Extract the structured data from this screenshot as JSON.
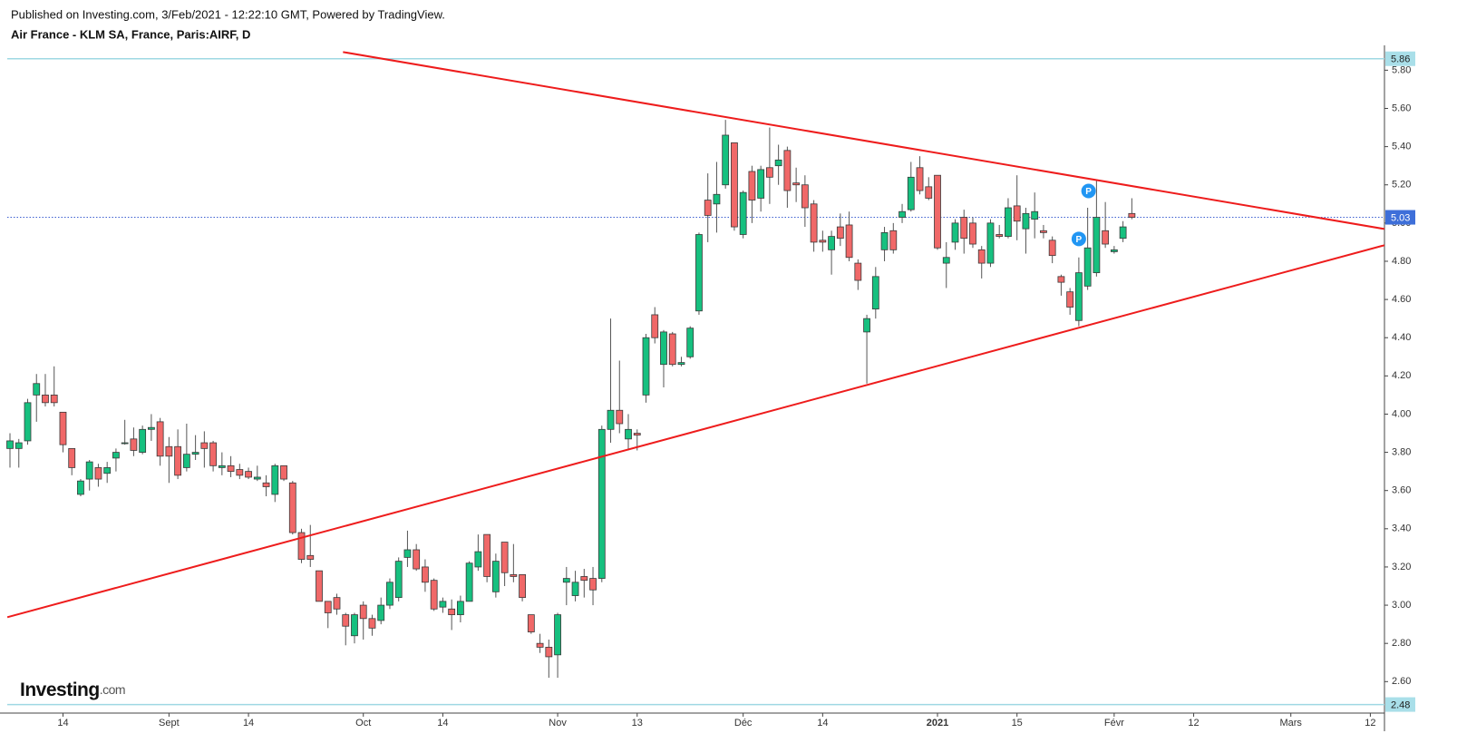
{
  "chart_data": {
    "type": "candlestick",
    "published": "Published on Investing.com, 3/Feb/2021 - 12:22:10 GMT, Powered by TradingView.",
    "title": "Air France - KLM SA, France, Paris:AIRF, D",
    "logo": "Investing",
    "logo_suffix": ".com",
    "up_color": "#16c07f",
    "down_color": "#f06868",
    "border_color": "#3a3a3a",
    "wick_color": "#555555",
    "open": [
      3.82,
      3.82,
      3.86,
      4.1,
      4.1,
      4.1,
      4.01,
      3.82,
      3.58,
      3.66,
      3.72,
      3.69,
      3.77,
      3.85,
      3.87,
      3.8,
      3.92,
      3.96,
      3.83,
      3.83,
      3.72,
      3.79,
      3.85,
      3.85,
      3.72,
      3.73,
      3.71,
      3.7,
      3.66,
      3.64,
      3.58,
      3.73,
      3.64,
      3.38,
      3.26,
      3.18,
      3.02,
      3.04,
      2.95,
      2.84,
      3.0,
      2.93,
      2.92,
      3.0,
      3.04,
      3.25,
      3.29,
      3.2,
      3.13,
      2.99,
      2.98,
      2.95,
      3.02,
      3.2,
      3.37,
      3.07,
      3.33,
      3.16,
      3.16,
      2.95,
      2.8,
      2.78,
      2.74,
      3.12,
      3.05,
      3.15,
      3.14,
      3.14,
      3.92,
      4.02,
      3.87,
      3.9,
      4.1,
      4.52,
      4.26,
      4.42,
      4.26,
      4.3,
      4.54,
      5.12,
      5.1,
      5.2,
      5.42,
      4.94,
      5.27,
      5.13,
      5.29,
      5.3,
      5.38,
      5.21,
      5.2,
      5.1,
      4.91,
      4.86,
      4.98,
      4.99,
      4.79,
      4.43,
      4.55,
      4.86,
      4.96,
      5.03,
      5.07,
      5.29,
      5.19,
      5.25,
      4.79,
      4.9,
      5.03,
      5.0,
      4.86,
      4.79,
      4.94,
      4.93,
      5.09,
      4.97,
      5.02,
      4.96,
      4.91,
      4.72,
      4.64,
      4.49,
      4.67,
      4.74,
      4.96,
      4.85,
      4.92,
      5.05
    ],
    "high": [
      3.9,
      3.87,
      4.08,
      4.21,
      4.21,
      4.25,
      4.01,
      3.82,
      3.66,
      3.76,
      3.74,
      3.75,
      3.82,
      3.97,
      3.93,
      3.94,
      4.0,
      3.98,
      3.88,
      3.92,
      3.95,
      3.89,
      3.91,
      3.86,
      3.8,
      3.78,
      3.74,
      3.72,
      3.73,
      3.68,
      3.74,
      3.73,
      3.65,
      3.4,
      3.42,
      3.18,
      3.02,
      3.06,
      2.96,
      2.96,
      3.02,
      2.95,
      3.04,
      3.14,
      3.25,
      3.39,
      3.32,
      3.24,
      3.14,
      3.04,
      3.03,
      3.05,
      3.23,
      3.37,
      3.37,
      3.27,
      3.33,
      3.32,
      3.16,
      2.95,
      2.85,
      2.82,
      2.96,
      3.2,
      3.18,
      3.19,
      3.2,
      3.94,
      4.5,
      4.28,
      4.0,
      3.92,
      4.42,
      4.56,
      4.44,
      4.43,
      4.3,
      4.46,
      4.95,
      5.26,
      5.32,
      5.54,
      5.42,
      5.17,
      5.3,
      5.3,
      5.5,
      5.41,
      5.4,
      5.29,
      5.25,
      5.12,
      4.96,
      4.96,
      5.05,
      5.06,
      4.81,
      4.52,
      4.77,
      4.98,
      5.0,
      5.1,
      5.32,
      5.35,
      5.24,
      5.25,
      4.9,
      5.02,
      5.07,
      5.03,
      4.88,
      5.02,
      4.99,
      5.13,
      5.25,
      5.08,
      5.16,
      4.99,
      4.93,
      4.73,
      4.66,
      4.82,
      5.08,
      5.22,
      5.11,
      4.88,
      5.01,
      5.13
    ],
    "low": [
      3.72,
      3.72,
      3.84,
      3.96,
      4.04,
      4.04,
      3.8,
      3.68,
      3.57,
      3.6,
      3.62,
      3.64,
      3.7,
      3.84,
      3.78,
      3.79,
      3.86,
      3.73,
      3.64,
      3.66,
      3.7,
      3.76,
      3.72,
      3.7,
      3.68,
      3.67,
      3.66,
      3.66,
      3.65,
      3.57,
      3.54,
      3.65,
      3.37,
      3.22,
      3.2,
      3.02,
      2.88,
      2.95,
      2.79,
      2.8,
      2.82,
      2.84,
      2.9,
      2.98,
      3.02,
      3.2,
      3.18,
      3.07,
      2.97,
      2.96,
      2.87,
      2.91,
      3.02,
      3.18,
      3.12,
      3.04,
      3.1,
      3.12,
      3.02,
      2.85,
      2.75,
      2.62,
      2.62,
      3.0,
      3.02,
      3.04,
      3.0,
      3.12,
      3.85,
      3.9,
      3.81,
      3.81,
      4.06,
      4.37,
      4.14,
      4.25,
      4.25,
      4.29,
      4.52,
      4.9,
      4.95,
      5.18,
      4.96,
      4.92,
      5.0,
      5.06,
      5.1,
      5.2,
      5.08,
      5.11,
      4.98,
      4.85,
      4.85,
      4.73,
      4.88,
      4.8,
      4.65,
      4.16,
      4.5,
      4.8,
      4.84,
      5.0,
      5.06,
      5.15,
      5.12,
      4.86,
      4.66,
      4.86,
      4.84,
      4.87,
      4.71,
      4.77,
      4.92,
      4.92,
      4.91,
      4.84,
      4.92,
      4.92,
      4.79,
      4.62,
      4.52,
      4.46,
      4.65,
      4.72,
      4.87,
      4.84,
      4.9,
      5.02
    ],
    "close": [
      3.86,
      3.85,
      4.06,
      4.16,
      4.06,
      4.06,
      3.84,
      3.72,
      3.65,
      3.75,
      3.66,
      3.72,
      3.8,
      3.85,
      3.81,
      3.92,
      3.93,
      3.78,
      3.78,
      3.68,
      3.79,
      3.8,
      3.82,
      3.73,
      3.73,
      3.7,
      3.68,
      3.67,
      3.67,
      3.62,
      3.73,
      3.66,
      3.38,
      3.24,
      3.24,
      3.02,
      2.96,
      2.98,
      2.89,
      2.95,
      2.93,
      2.88,
      3.0,
      3.12,
      3.23,
      3.29,
      3.19,
      3.12,
      2.98,
      3.02,
      2.95,
      3.02,
      3.22,
      3.28,
      3.15,
      3.23,
      3.17,
      3.15,
      3.04,
      2.86,
      2.78,
      2.73,
      2.95,
      3.14,
      3.12,
      3.13,
      3.08,
      3.92,
      4.02,
      3.95,
      3.92,
      3.89,
      4.4,
      4.4,
      4.43,
      4.26,
      4.27,
      4.45,
      4.94,
      5.04,
      5.15,
      5.46,
      4.98,
      5.16,
      5.12,
      5.28,
      5.24,
      5.33,
      5.17,
      5.2,
      5.08,
      4.9,
      4.9,
      4.93,
      4.92,
      4.82,
      4.7,
      4.5,
      4.72,
      4.95,
      4.86,
      5.06,
      5.24,
      5.17,
      5.13,
      4.87,
      4.82,
      5.0,
      4.92,
      4.89,
      4.79,
      5.0,
      4.93,
      5.08,
      5.01,
      5.05,
      5.06,
      4.95,
      4.83,
      4.69,
      4.56,
      4.74,
      4.87,
      5.03,
      4.89,
      4.86,
      4.98,
      5.03
    ],
    "xlim": [
      -1.13,
      155.6
    ],
    "xticks": [
      {
        "value": 6,
        "label": "14"
      },
      {
        "value": 18,
        "label": "Sept"
      },
      {
        "value": 27,
        "label": "14"
      },
      {
        "value": 40,
        "label": "Oct"
      },
      {
        "value": 49,
        "label": "14"
      },
      {
        "value": 62,
        "label": "Nov"
      },
      {
        "value": 71,
        "label": "13"
      },
      {
        "value": 83,
        "label": "Déc"
      },
      {
        "value": 92,
        "label": "14"
      },
      {
        "value": 105,
        "label": "2021",
        "bold": true
      },
      {
        "value": 114,
        "label": "15"
      },
      {
        "value": 125,
        "label": "Févr"
      },
      {
        "value": 134,
        "label": "12"
      },
      {
        "value": 145,
        "label": "Mars"
      },
      {
        "value": 154,
        "label": "12"
      }
    ],
    "ylim": [
      2.44,
      5.93
    ],
    "yticks": [
      {
        "value": 2.6,
        "label": "2.60"
      },
      {
        "value": 2.8,
        "label": "2.80"
      },
      {
        "value": 3.0,
        "label": "3.00"
      },
      {
        "value": 3.2,
        "label": "3.20"
      },
      {
        "value": 3.4,
        "label": "3.40"
      },
      {
        "value": 3.6,
        "label": "3.60"
      },
      {
        "value": 3.8,
        "label": "3.80"
      },
      {
        "value": 4.0,
        "label": "4.00"
      },
      {
        "value": 4.2,
        "label": "4.20"
      },
      {
        "value": 4.4,
        "label": "4.40"
      },
      {
        "value": 4.6,
        "label": "4.60"
      },
      {
        "value": 4.8,
        "label": "4.80"
      },
      {
        "value": 5.0,
        "label": "5.00"
      },
      {
        "value": 5.2,
        "label": "5.20"
      },
      {
        "value": 5.4,
        "label": "5.40"
      },
      {
        "value": 5.6,
        "label": "5.60"
      },
      {
        "value": 5.8,
        "label": "5.80"
      }
    ],
    "price_lines": [
      {
        "value": 5.86,
        "color": "#9fd8e3",
        "label_bg": "#a9dfe9",
        "label_color": "#222222",
        "dotted": false
      },
      {
        "value": 2.48,
        "color": "#9fd8e3",
        "label_bg": "#a9dfe9",
        "label_color": "#222222",
        "dotted": false
      },
      {
        "value": 5.03,
        "color": "#3d5fd0",
        "label_bg": "#3e6fd9",
        "label_color": "#ffffff",
        "dotted": true
      }
    ],
    "trendlines": [
      {
        "x": [
          37.7,
          155.6
        ],
        "y": [
          5.895,
          4.969
        ],
        "color": "#ee1c1c"
      },
      {
        "x": [
          -0.3,
          155.6
        ],
        "y": [
          2.937,
          4.884
        ],
        "color": "#ee1c1c"
      }
    ],
    "markers": [
      {
        "label": "P",
        "x": 122.1,
        "y": 5.168,
        "color": "#2196f3"
      },
      {
        "label": "P",
        "x": 121.0,
        "y": 4.917,
        "color": "#2196f3"
      }
    ]
  }
}
